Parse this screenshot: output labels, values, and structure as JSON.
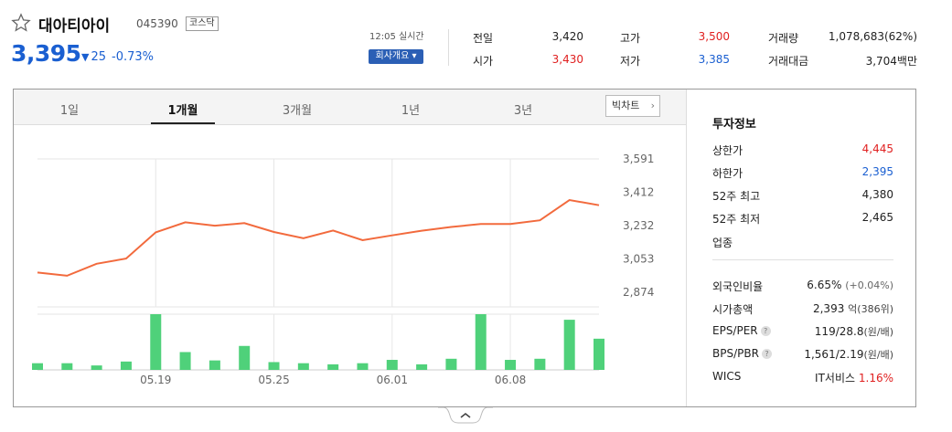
{
  "header": {
    "name": "대아티아이",
    "code": "045390",
    "market": "코스닥",
    "price": "3,395",
    "change": "25",
    "change_pct": "-0.73%",
    "time": "12:05 실시간",
    "company_btn": "회사개요 ▾",
    "star_icon": "star-outline-icon"
  },
  "quotes": {
    "prev_close_label": "전일",
    "prev_close": "3,420",
    "open_label": "시가",
    "open": "3,430",
    "high_label": "고가",
    "high": "3,500",
    "low_label": "저가",
    "low": "3,385",
    "volume_label": "거래량",
    "volume": "1,078,683(62%)",
    "amount_label": "거래대금",
    "amount": "3,704백만"
  },
  "tabs": [
    "1일",
    "1개월",
    "3개월",
    "1년",
    "3년"
  ],
  "active_tab": "1개월",
  "bigchart": "빅차트",
  "chart_data": {
    "type": "line",
    "ylabel_ticks": [
      "3,591",
      "3,412",
      "3,232",
      "3,053",
      "2,874"
    ],
    "ylim": [
      2874,
      3591
    ],
    "x_ticks": [
      "05.19",
      "05.25",
      "06.01",
      "06.08"
    ],
    "x_tick_index": [
      4,
      8,
      12,
      16
    ],
    "price_values": [
      2980,
      2963,
      3027,
      3055,
      3196,
      3250,
      3232,
      3246,
      3198,
      3164,
      3206,
      3154,
      3180,
      3205,
      3225,
      3241,
      3241,
      3261,
      3370,
      3342
    ],
    "volume_relative": [
      0.12,
      0.12,
      0.08,
      0.15,
      1.0,
      0.32,
      0.17,
      0.43,
      0.14,
      0.12,
      0.1,
      0.12,
      0.18,
      0.1,
      0.2,
      1.0,
      0.18,
      0.2,
      0.9,
      0.56
    ],
    "line_color": "#f26a3d",
    "volume_color": "#4fd17a",
    "grid": true
  },
  "invest_info": {
    "title": "투자정보",
    "upper_limit_label": "상한가",
    "upper_limit": "4,445",
    "lower_limit_label": "하한가",
    "lower_limit": "2,395",
    "high52_label": "52주 최고",
    "high52": "4,380",
    "low52_label": "52주 최저",
    "low52": "2,465",
    "industry_label": "업종",
    "foreign_label": "외국인비율",
    "foreign_val": "6.65%",
    "foreign_sub": "(+0.04%)",
    "mcap_label": "시가총액",
    "mcap_val": "2,393",
    "mcap_unit": "억(386위)",
    "eps_label": "EPS/PER",
    "eps_val": "119/28.8",
    "eps_unit": "(원/배)",
    "bps_label": "BPS/PBR",
    "bps_val": "1,561/2.19",
    "bps_unit": "(원/배)",
    "wics_label": "WICS",
    "wics_val": "IT서비스",
    "wics_pct": "1.16%"
  }
}
